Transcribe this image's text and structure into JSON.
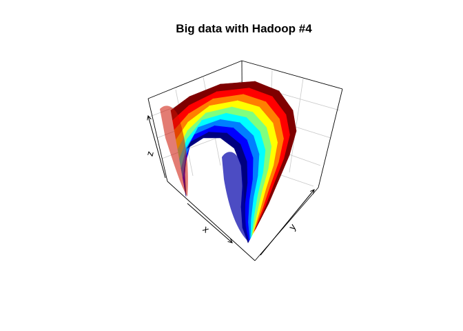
{
  "chart_data": {
    "type": "surface3d",
    "title": "Big data with Hadoop #4",
    "xlabel": "x",
    "ylabel": "y",
    "zlabel": "z",
    "colormap": "jet",
    "colors": [
      "#00007F",
      "#0000FF",
      "#007FFF",
      "#00FFFF",
      "#7FFF7F",
      "#FFFF00",
      "#FF7F00",
      "#FF0000",
      "#7F0000"
    ],
    "grid": true,
    "box": true,
    "axis_ticks": false
  }
}
